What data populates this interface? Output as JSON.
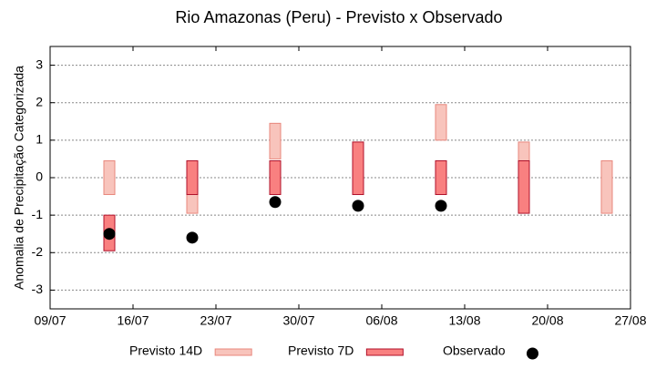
{
  "chart_data": {
    "type": "floating-bar",
    "title": "Rio Amazonas (Peru) - Previsto x Observado",
    "y_label": "Anomalia de Precipitação Categorizada",
    "x": [
      "14/07",
      "21/07",
      "28/07",
      "04/08",
      "11/08",
      "18/08",
      "25/08"
    ],
    "xlim": [
      "09/07",
      "27/08"
    ],
    "xticks": [
      "09/07",
      "16/07",
      "23/07",
      "30/07",
      "06/08",
      "13/08",
      "20/08",
      "27/08"
    ],
    "ylim": [
      -3.5,
      3.5
    ],
    "yticks": [
      -3,
      -2,
      -1,
      0,
      1,
      2,
      3
    ],
    "grid": true,
    "legend": "bottom",
    "series": [
      {
        "name": "Previsto 14D",
        "kind": "range",
        "color": "#f8c4bc",
        "stroke": "#e8877d",
        "values": [
          [
            -0.45,
            0.45
          ],
          [
            -0.95,
            0.45
          ],
          [
            0.5,
            1.45
          ],
          [
            -0.45,
            0.95
          ],
          [
            1.0,
            1.95
          ],
          [
            -0.45,
            0.95
          ],
          [
            -0.95,
            0.45
          ]
        ]
      },
      {
        "name": "Previsto 7D",
        "kind": "range",
        "color": "#f98080",
        "stroke": "#b0102a",
        "values": [
          [
            -1.95,
            -1.0
          ],
          [
            -0.45,
            0.45
          ],
          [
            -0.45,
            0.45
          ],
          [
            -0.45,
            0.95
          ],
          [
            -0.45,
            0.45
          ],
          [
            -0.95,
            0.45
          ],
          null
        ]
      },
      {
        "name": "Observado",
        "kind": "point",
        "color": "#000000",
        "values": [
          -1.5,
          -1.6,
          -0.65,
          -0.75,
          -0.75,
          null,
          null
        ]
      }
    ]
  }
}
